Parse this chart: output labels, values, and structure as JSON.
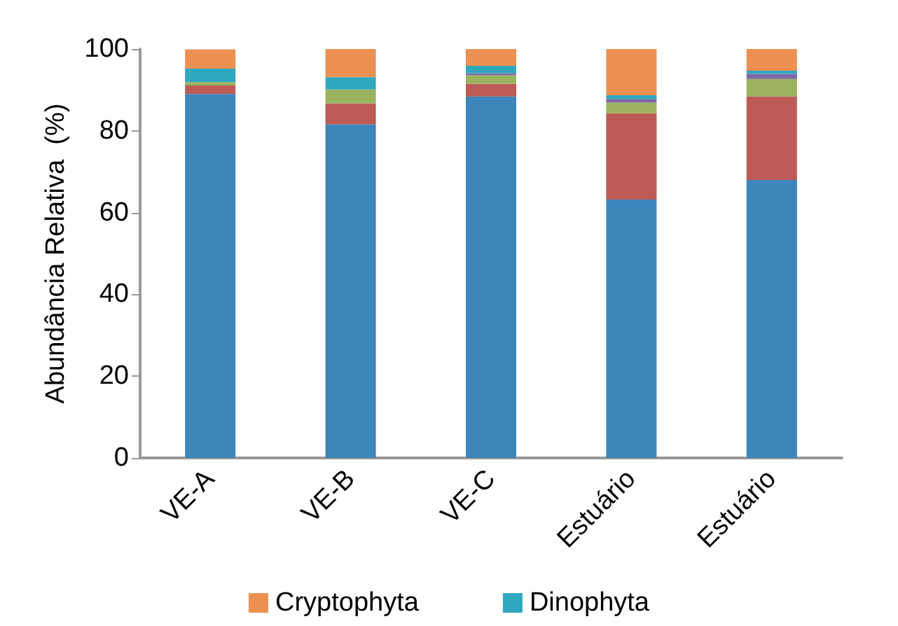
{
  "chart_data": {
    "type": "bar",
    "ylabel": "Abundância Relativa  (%)",
    "categories": [
      "VE-A",
      "VE-B",
      "VE-C",
      "Estuário",
      "Estuário"
    ],
    "stacked": true,
    "ylim": [
      0,
      100
    ],
    "yticks": [
      0,
      20,
      40,
      60,
      80,
      100
    ],
    "grid": false,
    "legend": "bottom",
    "series": [
      {
        "color": "#3c86bc",
        "values": [
          89.0,
          81.6,
          88.4,
          63.2,
          68.0
        ]
      },
      {
        "color": "#bc5a56",
        "values": [
          2.1,
          5.1,
          3.1,
          21.1,
          20.4
        ]
      },
      {
        "color": "#9bb35f",
        "values": [
          0.8,
          3.4,
          2.1,
          2.6,
          4.3
        ]
      },
      {
        "color": "#7e68a6",
        "values": [
          0,
          0,
          0.5,
          0.9,
          1.2
        ]
      },
      {
        "name": "Dinophyta",
        "color": "#2fa8c0",
        "values": [
          3.3,
          3.0,
          1.8,
          0.9,
          0.8
        ]
      },
      {
        "name": "Cryptophyta",
        "color": "#ec9152",
        "values": [
          4.7,
          6.9,
          4.2,
          11.3,
          5.3
        ]
      }
    ]
  }
}
